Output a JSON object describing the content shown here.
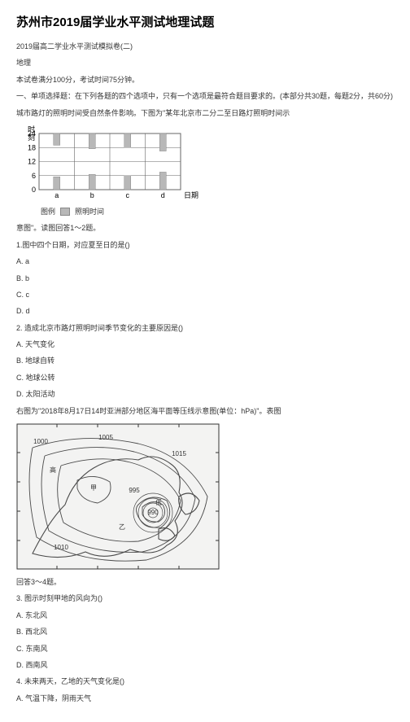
{
  "title": "苏州市2019届学业水平测试地理试题",
  "lines": {
    "l1": "2019届高二学业水平测试模拟卷(二)",
    "l2": "地理",
    "l3": "本试卷满分100分，考试时间75分钟。",
    "l4": "一、单项选择题：在下列各题的四个选项中，只有一个选项是最符合题目要求的。(本部分共30题，每题2分，共60分)",
    "l5": "城市路灯的照明时间受自然条件影响。下图为\"某年北京市二分二至日路灯照明时间示",
    "l6": "意图\"。读图回答1～2题。",
    "l7": "1.图中四个日期，对应夏至日的是()",
    "q1a": "A. a",
    "q1b": "B. b",
    "q1c": "C. c",
    "q1d": "D. d",
    "l8": "2. 造成北京市路灯照明时间季节变化的主要原因是()",
    "q2a": "A. 天气变化",
    "q2b": "B. 地球自转",
    "q2c": "C. 地球公转",
    "q2d": "D. 太阳活动",
    "l9": "右图为\"2018年8月17日14时亚洲部分地区海平面等压线示意图(单位：hPa)\"。表图",
    "l10": "回答3～4题。",
    "l11": "3. 图示时刻甲地的风向为()",
    "q3a": "A. 东北风",
    "q3b": "B. 西北风",
    "q3c": "C. 东南风",
    "q3d": "D. 西南风",
    "l12": "4. 未来两天，乙地的天气变化是()",
    "q4a": "A. 气温下降，阴雨天气"
  },
  "legend": {
    "label_left": "图例",
    "label_right": "照明时间"
  },
  "chart": {
    "ylabel": "时刻",
    "xlabel": "日期",
    "yticks": [
      0,
      6,
      12,
      18,
      24
    ],
    "xticks": [
      "a",
      "b",
      "c",
      "d"
    ],
    "bar_color": "#b8b8b8",
    "grid_color": "#666666",
    "bg_color": "#ffffff",
    "bars": [
      {
        "x": 0,
        "segments": [
          [
            0,
            5.5
          ],
          [
            19,
            24
          ]
        ]
      },
      {
        "x": 1,
        "segments": [
          [
            0,
            6.5
          ],
          [
            17.5,
            24
          ]
        ]
      },
      {
        "x": 2,
        "segments": [
          [
            0,
            6
          ],
          [
            18,
            24
          ]
        ]
      },
      {
        "x": 3,
        "segments": [
          [
            0,
            7.5
          ],
          [
            16.5,
            24
          ]
        ]
      }
    ]
  },
  "map": {
    "bg": "#f3f3f2",
    "line_color": "#4a4a4a",
    "coast_color": "#4a4a4a",
    "text_color": "#333333",
    "labels": [
      "1000",
      "1005",
      "1010",
      "1015",
      "990",
      "995",
      "甲",
      "乙",
      "高",
      "低"
    ]
  }
}
